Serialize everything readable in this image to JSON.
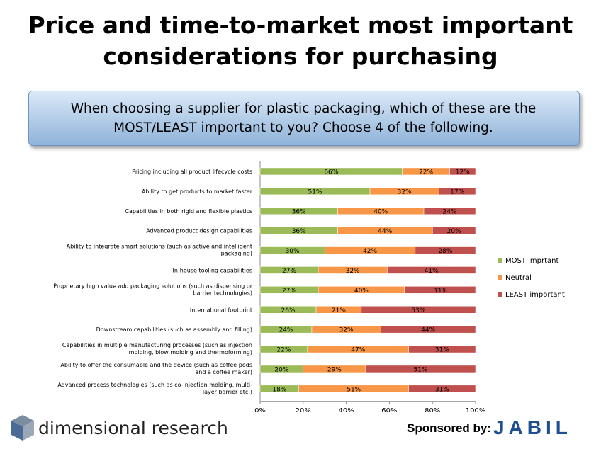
{
  "title_line1": "Price and time-to-market most important",
  "title_line2": "considerations for purchasing",
  "question_line1": "When choosing a supplier for plastic packaging, which of these are the",
  "question_line2": "MOST/LEAST important to you?  Choose 4 of the following.",
  "colors": {
    "most": "#9bbb59",
    "neutral": "#f79646",
    "least": "#c0504d"
  },
  "chart_data": {
    "type": "bar",
    "orientation": "horizontal-stacked-100",
    "categories": [
      [
        "Pricing including all product lifecycle costs"
      ],
      [
        "Ability to get products to market faster"
      ],
      [
        "Capabilities in both rigid and flexible plastics"
      ],
      [
        "Advanced product design capabilities"
      ],
      [
        "Ability to integrate smart solutions (such as active and intelligent",
        "packaging)"
      ],
      [
        "In-house tooling capabilities"
      ],
      [
        "Proprietary high value add packaging solutions (such as dispensing or",
        "barrier technologies)"
      ],
      [
        "International footprint"
      ],
      [
        "Downstream capabilities (such as assembly and filling)"
      ],
      [
        "Capabilities in multiple manufacturing processes (such as injection",
        "molding, blow molding and thermoforming)"
      ],
      [
        "Ability to offer the consumable and the device (such as coffee pods",
        "and a coffee maker)"
      ],
      [
        "Advanced process technologies (such as co-injection molding, multi-",
        "layer barrier etc.)"
      ]
    ],
    "series": [
      {
        "name": "MOST imprtant",
        "values": [
          66,
          51,
          36,
          36,
          30,
          27,
          27,
          26,
          24,
          22,
          20,
          18
        ]
      },
      {
        "name": "Neutral",
        "values": [
          22,
          32,
          40,
          44,
          42,
          32,
          40,
          21,
          32,
          47,
          29,
          51
        ]
      },
      {
        "name": "LEAST important",
        "values": [
          12,
          17,
          24,
          20,
          28,
          41,
          33,
          53,
          44,
          31,
          51,
          31
        ]
      }
    ],
    "xticks": [
      "0%",
      "20%",
      "40%",
      "60%",
      "80%",
      "100%"
    ],
    "xlim": [
      0,
      100
    ],
    "legend_position": "right"
  },
  "footer": {
    "brand": "dimensional research",
    "sponsor": "Sponsored by:",
    "sponsor_logo": "JABIL"
  }
}
